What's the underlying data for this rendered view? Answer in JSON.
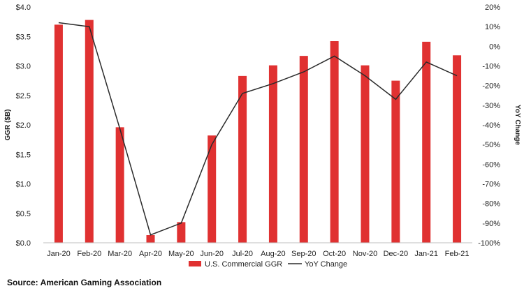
{
  "chart_data": {
    "type": "bar",
    "categories": [
      "Jan-20",
      "Feb-20",
      "Mar-20",
      "Apr-20",
      "May-20",
      "Jun-20",
      "Jul-20",
      "Aug-20",
      "Sep-20",
      "Oct-20",
      "Nov-20",
      "Dec-20",
      "Jan-21",
      "Feb-21"
    ],
    "series": [
      {
        "name": "U.S. Commercial GGR",
        "type": "bar",
        "axis": "left",
        "values": [
          3.7,
          3.78,
          1.96,
          0.13,
          0.35,
          1.82,
          2.83,
          3.01,
          3.17,
          3.42,
          3.01,
          2.75,
          3.41,
          3.18
        ]
      },
      {
        "name": "YoY Change",
        "type": "line",
        "axis": "right",
        "values": [
          12,
          10,
          -42,
          -96,
          -90,
          -50,
          -24,
          -19,
          -13,
          -5,
          -15,
          -27,
          -8,
          -15
        ]
      }
    ],
    "ylabel": "GGR ($B)",
    "y2label": "YoY Change",
    "ylim": [
      0,
      4
    ],
    "y2lim": [
      -100,
      20
    ],
    "yticks": [
      "$0.0",
      "$0.5",
      "$1.0",
      "$1.5",
      "$2.0",
      "$2.5",
      "$3.0",
      "$3.5",
      "$4.0"
    ],
    "y2ticks": [
      "-100%",
      "-90%",
      "-80%",
      "-70%",
      "-60%",
      "-50%",
      "-40%",
      "-30%",
      "-20%",
      "-10%",
      "0%",
      "10%",
      "20%"
    ],
    "legend_position": "bottom",
    "grid": false,
    "colors": {
      "bar": "#e03131",
      "line": "#2b2b2b",
      "axis": "#bfbfbf"
    }
  },
  "source_text": "Source: American Gaming Association"
}
